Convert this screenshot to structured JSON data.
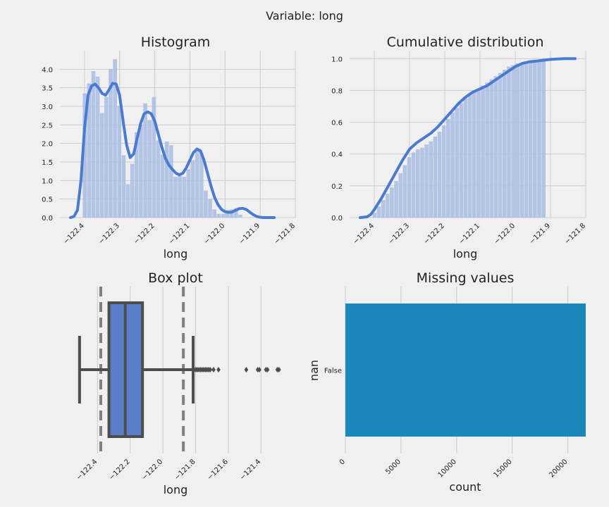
{
  "suptitle": "Variable: long",
  "colors": {
    "background": "#f0f0f0",
    "bar": "#adbfe3",
    "kde": "#4a7bd0",
    "box": "#5b7ec9",
    "box_edge": "#4d4d4d",
    "missing_bar": "#1b87ba",
    "grid": "#cbcbcb"
  },
  "chart_data": [
    {
      "id": "histogram",
      "type": "bar",
      "title": "Histogram",
      "xlabel": "long",
      "ylabel": "",
      "xlim": [
        -122.47,
        -121.8
      ],
      "ylim": [
        0,
        4.5
      ],
      "x_ticks": [
        -122.4,
        -122.3,
        -122.2,
        -122.1,
        -122.0,
        -121.9,
        -121.8
      ],
      "x_tick_labels": [
        "−122.4",
        "−122.3",
        "−122.2",
        "−122.1",
        "−122.0",
        "−121.9",
        "−121.8"
      ],
      "y_ticks": [
        0.0,
        0.5,
        1.0,
        1.5,
        2.0,
        2.5,
        3.0,
        3.5,
        4.0
      ],
      "y_tick_labels": [
        "0.0",
        "0.5",
        "1.0",
        "1.5",
        "2.0",
        "2.5",
        "3.0",
        "3.5",
        "4.0"
      ],
      "bin_start": -122.405,
      "bin_width": 0.0123,
      "values": [
        3.35,
        3.62,
        3.95,
        3.8,
        2.82,
        3.25,
        4.0,
        4.27,
        3.0,
        1.68,
        0.9,
        1.45,
        2.3,
        2.5,
        3.08,
        2.63,
        3.25,
        2.08,
        1.7,
        2.05,
        1.95,
        1.1,
        1.12,
        1.1,
        1.3,
        1.55,
        1.85,
        1.75,
        0.73,
        0.5,
        0.22,
        0.1,
        0.1,
        0.2,
        0.22,
        0.25,
        0.08
      ],
      "series": [
        {
          "name": "",
          "kind": "kde",
          "x": [
            -122.44,
            -122.43,
            -122.42,
            -122.41,
            -122.4,
            -122.39,
            -122.38,
            -122.37,
            -122.36,
            -122.35,
            -122.34,
            -122.33,
            -122.32,
            -122.31,
            -122.3,
            -122.29,
            -122.28,
            -122.27,
            -122.26,
            -122.25,
            -122.24,
            -122.23,
            -122.22,
            -122.21,
            -122.2,
            -122.19,
            -122.18,
            -122.17,
            -122.16,
            -122.15,
            -122.14,
            -122.13,
            -122.12,
            -122.11,
            -122.1,
            -122.09,
            -122.08,
            -122.07,
            -122.06,
            -122.05,
            -122.04,
            -122.03,
            -122.02,
            -122.01,
            -122.0,
            -121.99,
            -121.98,
            -121.97,
            -121.96,
            -121.95,
            -121.94,
            -121.93,
            -121.92,
            -121.91,
            -121.9,
            -121.89,
            -121.88,
            -121.87,
            -121.86
          ],
          "values": [
            0.0,
            0.03,
            0.2,
            1.0,
            2.4,
            3.3,
            3.55,
            3.6,
            3.5,
            3.35,
            3.3,
            3.45,
            3.62,
            3.6,
            3.3,
            2.6,
            1.95,
            1.62,
            1.72,
            2.15,
            2.55,
            2.8,
            2.85,
            2.8,
            2.6,
            2.25,
            1.9,
            1.6,
            1.42,
            1.3,
            1.2,
            1.15,
            1.2,
            1.35,
            1.55,
            1.75,
            1.85,
            1.8,
            1.55,
            1.2,
            0.85,
            0.55,
            0.35,
            0.22,
            0.16,
            0.14,
            0.15,
            0.2,
            0.24,
            0.25,
            0.22,
            0.15,
            0.08,
            0.03,
            0.01,
            0.0,
            0.0,
            0.0,
            0.0
          ]
        }
      ]
    },
    {
      "id": "cumulative",
      "type": "area",
      "title": "Cumulative distribution",
      "xlabel": "long",
      "ylabel": "",
      "xlim": [
        -122.47,
        -121.8
      ],
      "ylim": [
        0,
        1.05
      ],
      "x_ticks": [
        -122.4,
        -122.3,
        -122.2,
        -122.1,
        -122.0,
        -121.9,
        -121.8
      ],
      "x_tick_labels": [
        "−122.4",
        "−122.3",
        "−122.2",
        "−122.1",
        "−122.0",
        "−121.9",
        "−121.8"
      ],
      "y_ticks": [
        0.0,
        0.2,
        0.4,
        0.6,
        0.8,
        1.0
      ],
      "y_tick_labels": [
        "0.0",
        "0.2",
        "0.4",
        "0.6",
        "0.8",
        "1.0"
      ],
      "bin_start": -122.405,
      "bin_width": 0.0123,
      "values": [
        0.03,
        0.07,
        0.11,
        0.15,
        0.19,
        0.23,
        0.28,
        0.33,
        0.38,
        0.41,
        0.43,
        0.44,
        0.46,
        0.48,
        0.51,
        0.54,
        0.58,
        0.62,
        0.66,
        0.69,
        0.72,
        0.75,
        0.77,
        0.79,
        0.81,
        0.83,
        0.85,
        0.87,
        0.89,
        0.91,
        0.93,
        0.95,
        0.96,
        0.97,
        0.97,
        0.98,
        0.98,
        0.985,
        0.99,
        0.99
      ],
      "series": [
        {
          "name": "",
          "kind": "cdf",
          "x": [
            -122.44,
            -122.42,
            -122.41,
            -122.4,
            -122.38,
            -122.36,
            -122.34,
            -122.32,
            -122.3,
            -122.28,
            -122.26,
            -122.24,
            -122.22,
            -122.2,
            -122.18,
            -122.16,
            -122.14,
            -122.12,
            -122.1,
            -122.08,
            -122.06,
            -122.04,
            -122.02,
            -122.0,
            -121.98,
            -121.96,
            -121.94,
            -121.92,
            -121.9,
            -121.88,
            -121.86,
            -121.83
          ],
          "values": [
            0.0,
            0.005,
            0.02,
            0.05,
            0.12,
            0.2,
            0.28,
            0.36,
            0.43,
            0.47,
            0.5,
            0.53,
            0.57,
            0.62,
            0.67,
            0.72,
            0.76,
            0.79,
            0.81,
            0.83,
            0.86,
            0.89,
            0.92,
            0.95,
            0.97,
            0.98,
            0.985,
            0.99,
            0.995,
            0.998,
            1.0,
            1.0
          ]
        }
      ]
    },
    {
      "id": "boxplot",
      "type": "box",
      "title": "Box plot",
      "xlabel": "long",
      "ylabel": "",
      "xlim": [
        -122.63,
        -121.19
      ],
      "x_ticks": [
        -122.4,
        -122.2,
        -122.0,
        -121.8,
        -121.6,
        -121.4
      ],
      "x_tick_labels": [
        "−122.4",
        "−122.2",
        "−122.0",
        "−121.8",
        "−121.6",
        "−121.4"
      ],
      "whisker_low": -122.51,
      "q1": -122.33,
      "median": -122.23,
      "q3": -122.125,
      "whisker_high": -121.815,
      "reference_lines": [
        -122.38,
        -121.875
      ],
      "outliers": [
        -121.81,
        -121.8,
        -121.79,
        -121.78,
        -121.77,
        -121.76,
        -121.75,
        -121.74,
        -121.73,
        -121.72,
        -121.71,
        -121.69,
        -121.66,
        -121.49,
        -121.42,
        -121.41,
        -121.37,
        -121.36,
        -121.3,
        -121.29
      ]
    },
    {
      "id": "missing",
      "type": "bar",
      "orientation": "horizontal",
      "title": "Missing values",
      "xlabel": "count",
      "ylabel": "nan",
      "categories": [
        "False"
      ],
      "values": [
        21613
      ],
      "xlim": [
        0,
        21613
      ],
      "x_ticks": [
        0,
        5000,
        10000,
        15000,
        20000
      ],
      "x_tick_labels": [
        "0",
        "5000",
        "10000",
        "15000",
        "20000"
      ]
    }
  ]
}
